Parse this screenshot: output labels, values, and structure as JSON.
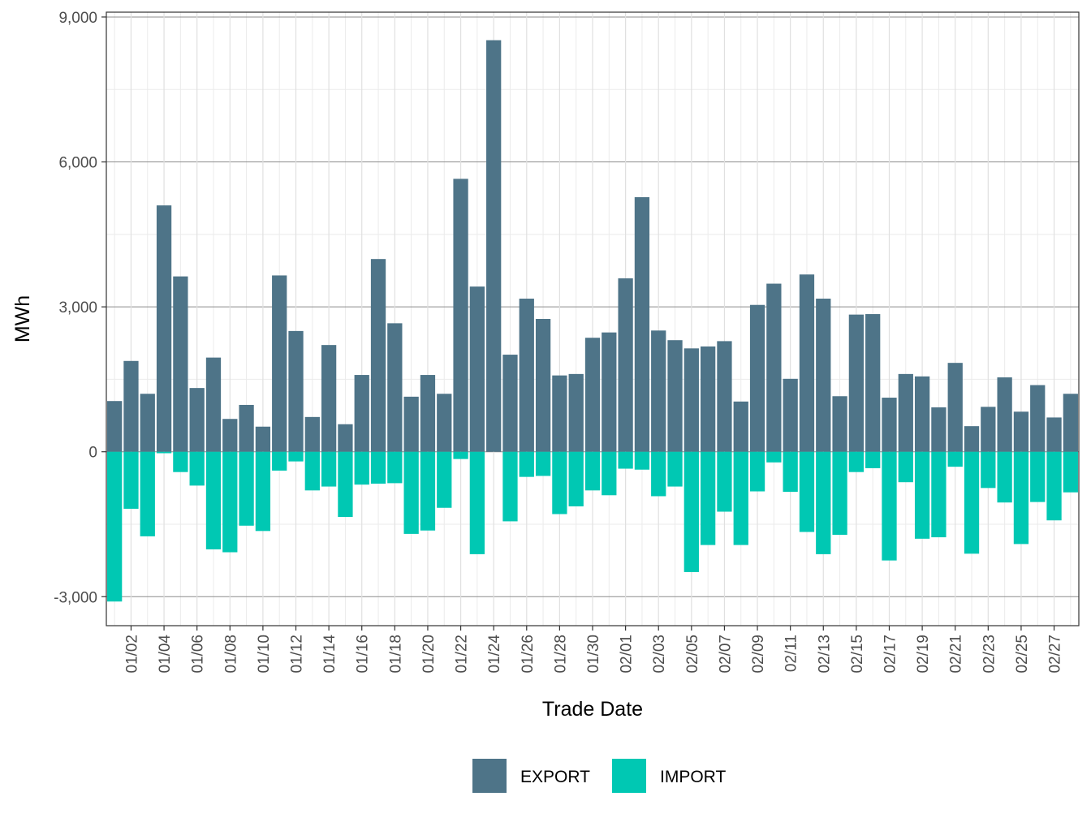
{
  "chart_data": {
    "type": "bar",
    "stacked": true,
    "xlabel": "Trade Date",
    "ylabel": "MWh",
    "ylim": [
      -3600,
      9100
    ],
    "yticks": [
      -3000,
      0,
      3000,
      6000,
      9000
    ],
    "ytick_labels": [
      "-3,000",
      "0",
      "3,000",
      "6,000",
      "9,000"
    ],
    "grid": true,
    "legend_position": "bottom",
    "categories": [
      "01/01",
      "01/02",
      "01/03",
      "01/04",
      "01/05",
      "01/06",
      "01/07",
      "01/08",
      "01/09",
      "01/10",
      "01/11",
      "01/12",
      "01/13",
      "01/14",
      "01/15",
      "01/16",
      "01/17",
      "01/18",
      "01/19",
      "01/20",
      "01/21",
      "01/22",
      "01/23",
      "01/24",
      "01/25",
      "01/26",
      "01/27",
      "01/28",
      "01/29",
      "01/30",
      "01/31",
      "02/01",
      "02/02",
      "02/03",
      "02/04",
      "02/05",
      "02/06",
      "02/07",
      "02/08",
      "02/09",
      "02/10",
      "02/11",
      "02/12",
      "02/13",
      "02/14",
      "02/15",
      "02/16",
      "02/17",
      "02/18",
      "02/19",
      "02/20",
      "02/21",
      "02/22",
      "02/23",
      "02/24",
      "02/25",
      "02/26",
      "02/27",
      "02/28"
    ],
    "x_tick_labels": [
      "01/02",
      "01/04",
      "01/06",
      "01/08",
      "01/10",
      "01/12",
      "01/14",
      "01/16",
      "01/18",
      "01/20",
      "01/22",
      "01/24",
      "01/26",
      "01/28",
      "01/30",
      "02/01",
      "02/03",
      "02/05",
      "02/07",
      "02/09",
      "02/11",
      "02/13",
      "02/15",
      "02/17",
      "02/19",
      "02/21",
      "02/23",
      "02/25",
      "02/27"
    ],
    "series": [
      {
        "name": "EXPORT",
        "color": "#4e7488",
        "values": [
          1050,
          1880,
          1200,
          5100,
          3630,
          1320,
          1950,
          680,
          970,
          520,
          3650,
          2500,
          720,
          2210,
          570,
          1590,
          3990,
          2660,
          1140,
          1590,
          1200,
          5650,
          3420,
          8520,
          2010,
          3170,
          2750,
          1580,
          1610,
          2360,
          2470,
          3590,
          5270,
          2510,
          2310,
          2140,
          2180,
          2290,
          1040,
          3040,
          3480,
          1510,
          3670,
          3170,
          1150,
          2840,
          2850,
          1120,
          1610,
          1560,
          920,
          1840,
          530,
          930,
          1540,
          830,
          1380,
          710,
          1200
        ]
      },
      {
        "name": "IMPORT",
        "color": "#00c8b3",
        "values": [
          -3100,
          -1180,
          -1750,
          -30,
          -420,
          -700,
          -2020,
          -2080,
          -1530,
          -1640,
          -390,
          -200,
          -800,
          -720,
          -1350,
          -680,
          -660,
          -650,
          -1700,
          -1630,
          -1160,
          -150,
          -2120,
          0,
          -1440,
          -520,
          -500,
          -1290,
          -1130,
          -800,
          -900,
          -350,
          -370,
          -920,
          -720,
          -2490,
          -1930,
          -1240,
          -1930,
          -820,
          -220,
          -830,
          -1660,
          -2120,
          -1720,
          -420,
          -340,
          -2250,
          -630,
          -1800,
          -1770,
          -310,
          -2110,
          -750,
          -1050,
          -1910,
          -1040,
          -1420,
          -840
        ]
      }
    ]
  }
}
